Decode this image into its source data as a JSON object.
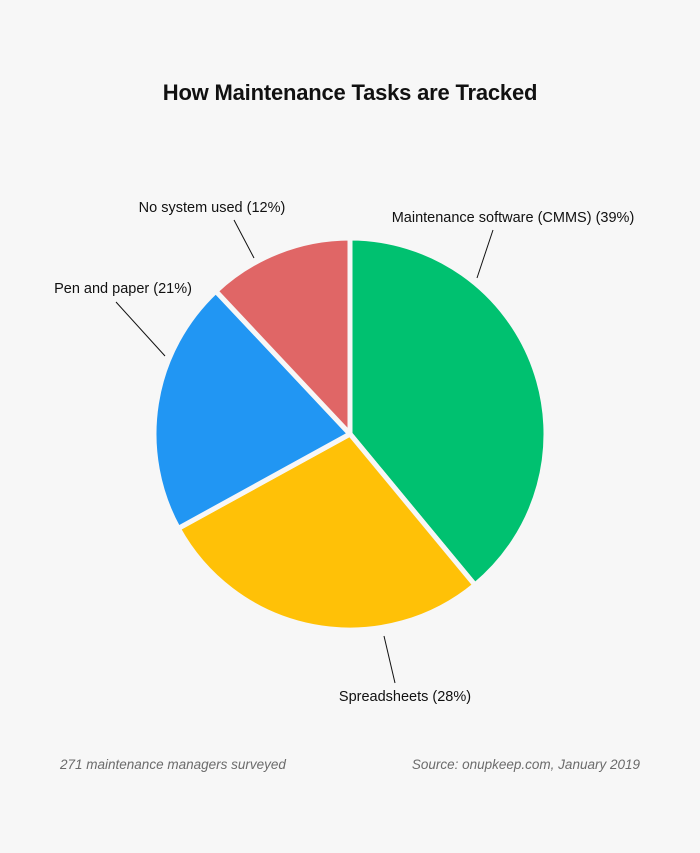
{
  "chart_data": {
    "type": "pie",
    "title": "How Maintenance Tasks are Tracked",
    "slices": [
      {
        "label": "Maintenance software (CMMS) (39%)",
        "value": 39,
        "color": "#00c170"
      },
      {
        "label": "Spreadsheets (28%)",
        "value": 28,
        "color": "#ffc107"
      },
      {
        "label": "Pen and paper (21%)",
        "value": 21,
        "color": "#2196f3"
      },
      {
        "label": "No system used (12%)",
        "value": 12,
        "color": "#e06666"
      }
    ],
    "start": "12 o'clock",
    "direction": "clockwise",
    "legend": "none"
  },
  "footer": {
    "note": "271 maintenance managers surveyed",
    "source": "Source: onupkeep.com, January 2019"
  }
}
